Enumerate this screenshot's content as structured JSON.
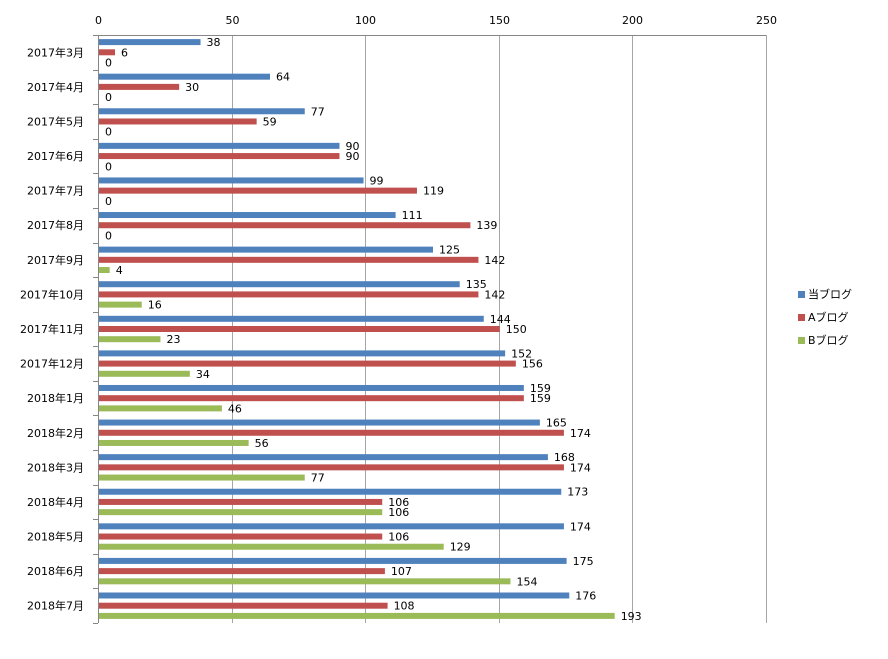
{
  "chart_data": {
    "type": "bar",
    "orientation": "horizontal",
    "categories": [
      "2017年3月",
      "2017年4月",
      "2017年5月",
      "2017年6月",
      "2017年7月",
      "2017年8月",
      "2017年9月",
      "2017年10月",
      "2017年11月",
      "2017年12月",
      "2018年1月",
      "2018年2月",
      "2018年3月",
      "2018年4月",
      "2018年5月",
      "2018年6月",
      "2018年7月"
    ],
    "series": [
      {
        "name": "当ブログ",
        "color": "#4f81bd",
        "values": [
          38,
          64,
          77,
          90,
          99,
          111,
          125,
          135,
          144,
          152,
          159,
          165,
          168,
          173,
          174,
          175,
          176
        ]
      },
      {
        "name": "Aブログ",
        "color": "#c0504d",
        "values": [
          6,
          30,
          59,
          90,
          119,
          139,
          142,
          142,
          150,
          156,
          159,
          174,
          174,
          106,
          106,
          107,
          108
        ]
      },
      {
        "name": "Bブログ",
        "color": "#9bbb59",
        "values": [
          0,
          0,
          0,
          0,
          0,
          0,
          4,
          16,
          23,
          34,
          46,
          56,
          77,
          106,
          129,
          154,
          193
        ]
      }
    ],
    "xlim": [
      0,
      250
    ],
    "xticks": [
      0,
      50,
      100,
      150,
      200,
      250
    ],
    "x_axis_position": "top",
    "grid": true,
    "data_labels": true,
    "legend_position": "right"
  }
}
